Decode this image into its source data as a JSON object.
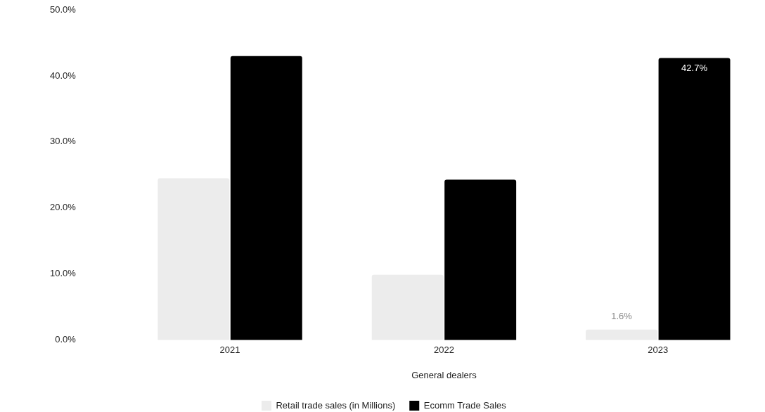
{
  "chart_data": {
    "type": "bar",
    "categories": [
      "2021",
      "2022",
      "2023"
    ],
    "xlabel": "General dealers",
    "series": [
      {
        "name": "Retail trade sales (in Millions)",
        "color": "#ececec",
        "values": [
          24.5,
          9.9,
          1.6
        ],
        "value_labels": [
          null,
          null,
          "1.6%"
        ]
      },
      {
        "name": "Ecomm Trade Sales",
        "color": "#000000",
        "values": [
          43.0,
          24.3,
          42.7
        ],
        "value_labels": [
          null,
          null,
          "42.7%"
        ]
      }
    ],
    "ylim": [
      0,
      50
    ],
    "yticks": [
      {
        "value": 0,
        "label": "0.0%"
      },
      {
        "value": 10,
        "label": "10.0%"
      },
      {
        "value": 20,
        "label": "20.0%"
      },
      {
        "value": 30,
        "label": "30.0%"
      },
      {
        "value": 40,
        "label": "40.0%"
      },
      {
        "value": 50,
        "label": "50.0%"
      }
    ],
    "grid": false,
    "legend": "bottom"
  }
}
